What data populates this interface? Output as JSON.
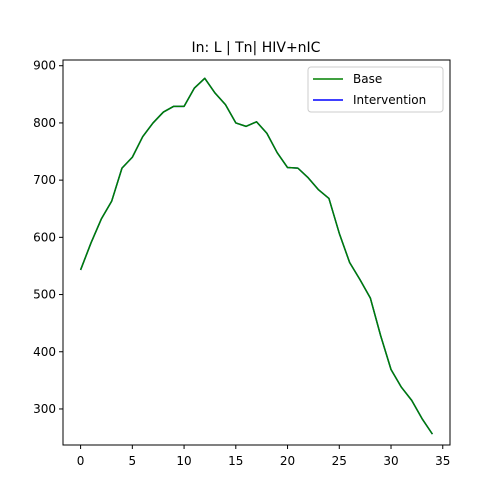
{
  "chart_data": {
    "type": "line",
    "title": "In: L | Tn| HIV+nIC",
    "xlabel": "",
    "ylabel": "",
    "xlim": [
      -1.7,
      35.7
    ],
    "ylim": [
      237,
      910
    ],
    "xticks": [
      0,
      5,
      10,
      15,
      20,
      25,
      30,
      35
    ],
    "yticks": [
      300,
      400,
      500,
      600,
      700,
      800,
      900
    ],
    "grid": false,
    "legend_position": "top-right",
    "x": [
      0,
      1,
      2,
      3,
      4,
      5,
      6,
      7,
      8,
      9,
      10,
      11,
      12,
      13,
      14,
      15,
      16,
      17,
      18,
      19,
      20,
      21,
      22,
      23,
      24,
      25,
      26,
      27,
      28,
      29,
      30,
      31,
      32,
      33,
      34
    ],
    "series": [
      {
        "name": "Base",
        "color": "#008000",
        "values": [
          543,
          590,
          632,
          663,
          721,
          740,
          776,
          800,
          819,
          829,
          829,
          861,
          878,
          852,
          832,
          800,
          794,
          802,
          782,
          748,
          722,
          721,
          704,
          683,
          668,
          607,
          556,
          526,
          494,
          428,
          369,
          338,
          315,
          283,
          256
        ]
      },
      {
        "name": "Intervention",
        "color": "#0000ff",
        "values": [
          543,
          590,
          632,
          663,
          721,
          740,
          776,
          800,
          819,
          829,
          829,
          861,
          878,
          852,
          832,
          800,
          794,
          802,
          782,
          748,
          722,
          721,
          704,
          683,
          668,
          607,
          556,
          526,
          494,
          428,
          369,
          338,
          315,
          283,
          256
        ]
      }
    ]
  }
}
